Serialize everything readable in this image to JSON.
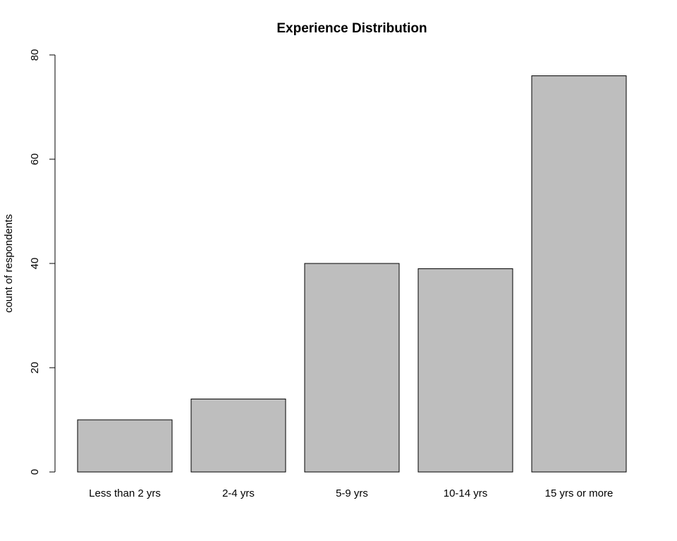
{
  "chart_data": {
    "type": "bar",
    "title": "Experience Distribution",
    "xlabel": "",
    "ylabel": "count of respondents",
    "categories": [
      "Less than 2 yrs",
      "2-4 yrs",
      "5-9 yrs",
      "10-14 yrs",
      "15 yrs or more"
    ],
    "values": [
      10,
      14,
      40,
      39,
      76
    ],
    "ylim": [
      0,
      80
    ],
    "yticks": [
      0,
      20,
      40,
      60,
      80
    ],
    "ytick_labels": [
      "0",
      "20",
      "40",
      "60",
      "80"
    ],
    "grid": false,
    "legend": "none",
    "bar_color": "#bebebe",
    "bar_edge_color": "#000000"
  }
}
